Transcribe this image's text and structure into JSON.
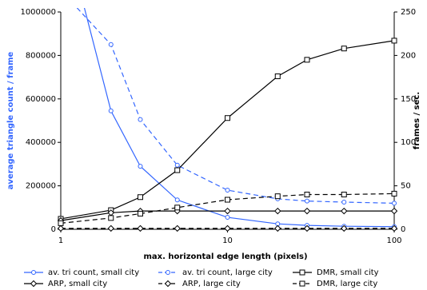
{
  "chart_data": {
    "type": "line",
    "x_label": "max. horizontal edge length (pixels)",
    "y_label": "average triangle count / frame",
    "y2_label": "frames / sec.",
    "x_scale": "log",
    "xlim": [
      1,
      100
    ],
    "xticks": [
      1,
      10,
      100
    ],
    "ylim": [
      0,
      1000000
    ],
    "yticks": [
      0,
      200000,
      400000,
      600000,
      800000,
      1000000
    ],
    "y2lim": [
      0,
      250
    ],
    "y2ticks": [
      0,
      50,
      100,
      150,
      200,
      250
    ],
    "y_label_color": "#3366ff",
    "x": [
      1,
      2,
      3,
      5,
      10,
      20,
      30,
      50,
      100
    ],
    "series": [
      {
        "name": "av. tri count, small city",
        "color": "#3366ff",
        "line_style": "solid",
        "marker": "circle",
        "values": [
          1440000,
          545000,
          290000,
          135000,
          55000,
          25000,
          18000,
          14000,
          12000
        ]
      },
      {
        "name": "av. tri count, large city",
        "color": "#3366ff",
        "line_style": "dashed",
        "marker": "circle",
        "values": [
          1100000,
          850000,
          505000,
          295000,
          180000,
          140000,
          130000,
          125000,
          120000
        ]
      },
      {
        "name": "DMR, small city",
        "color": "#000000",
        "line_style": "solid",
        "marker": "square",
        "axis": "y2",
        "values": [
          12,
          22,
          37,
          68,
          128,
          176,
          195,
          208,
          217
        ]
      },
      {
        "name": "ARP, small city",
        "color": "#000000",
        "line_style": "solid",
        "marker": "diamond",
        "axis": "y2",
        "values": [
          10,
          19,
          21,
          21,
          21,
          21,
          21,
          21,
          21
        ]
      },
      {
        "name": "ARP, large city",
        "color": "#000000",
        "line_style": "dashed",
        "marker": "diamond",
        "axis": "y2",
        "values": [
          1,
          1,
          1,
          1,
          1,
          1,
          1,
          1,
          1
        ]
      },
      {
        "name": "DMR, large city",
        "color": "#000000",
        "line_style": "dashed",
        "marker": "square",
        "axis": "y2",
        "values": [
          7,
          13,
          18,
          25,
          34,
          38,
          40,
          40,
          41
        ]
      }
    ]
  }
}
